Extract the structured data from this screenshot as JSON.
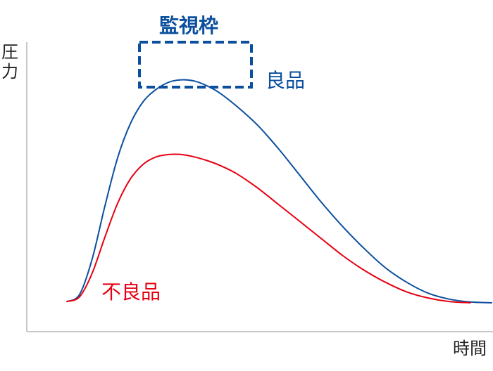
{
  "chart_data": {
    "type": "line",
    "title": "",
    "xlabel": "時間",
    "ylabel": "圧力",
    "grid": false,
    "legend": "none",
    "xlim": [
      0,
      100
    ],
    "ylim": [
      0,
      100
    ],
    "series": [
      {
        "name": "良品",
        "color": "#0b4f9e",
        "x": [
          0,
          3,
          6,
          9,
          12,
          15,
          18,
          21,
          24,
          27,
          30,
          33,
          36,
          40,
          45,
          50,
          55,
          60,
          65,
          70,
          75,
          80,
          85,
          90,
          95,
          100
        ],
        "y": [
          2,
          5,
          20,
          42,
          62,
          76,
          85,
          90,
          93,
          94,
          93.5,
          91.5,
          88.5,
          83,
          75,
          65,
          54,
          43,
          33,
          24,
          16,
          10,
          5.5,
          3,
          1.8,
          1.5
        ]
      },
      {
        "name": "不良品",
        "color": "#e60012",
        "x": [
          0,
          3,
          6,
          9,
          12,
          15,
          18,
          21,
          24,
          27,
          30,
          33,
          36,
          40,
          45,
          50,
          55,
          60,
          65,
          70,
          75,
          80,
          85,
          90,
          95
        ],
        "y": [
          2,
          4,
          14,
          29,
          43,
          53,
          59,
          62,
          63,
          63,
          62,
          60.5,
          58.5,
          55,
          49,
          42,
          35,
          28,
          21,
          15,
          10,
          6,
          3.5,
          2,
          1.5
        ]
      }
    ],
    "annotations": [
      {
        "text": "監視枠",
        "target": "良品 peak",
        "style": "dashed box"
      },
      {
        "text": "良品",
        "color": "#0b4f9e"
      },
      {
        "text": "不良品",
        "color": "#e60012"
      }
    ]
  },
  "colors": {
    "axis": "#c8c8c8",
    "text": "#222222",
    "good": "#0b4f9e",
    "bad": "#e60012",
    "window": "#0b4f9e"
  }
}
